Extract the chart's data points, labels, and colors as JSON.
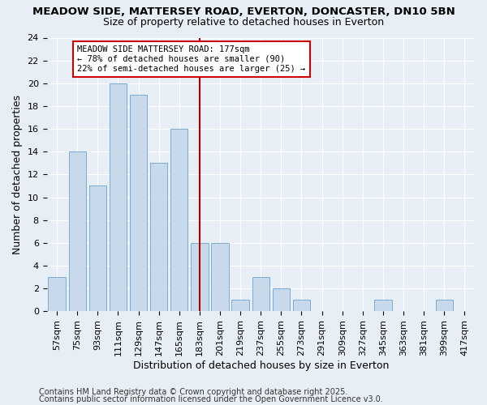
{
  "title1": "MEADOW SIDE, MATTERSEY ROAD, EVERTON, DONCASTER, DN10 5BN",
  "title2": "Size of property relative to detached houses in Everton",
  "xlabel": "Distribution of detached houses by size in Everton",
  "ylabel": "Number of detached properties",
  "categories": [
    "57sqm",
    "75sqm",
    "93sqm",
    "111sqm",
    "129sqm",
    "147sqm",
    "165sqm",
    "183sqm",
    "201sqm",
    "219sqm",
    "237sqm",
    "255sqm",
    "273sqm",
    "291sqm",
    "309sqm",
    "327sqm",
    "345sqm",
    "363sqm",
    "381sqm",
    "399sqm",
    "417sqm"
  ],
  "values": [
    3,
    14,
    11,
    20,
    19,
    13,
    16,
    6,
    6,
    1,
    3,
    2,
    1,
    0,
    0,
    0,
    1,
    0,
    0,
    1,
    0
  ],
  "bar_color": "#c9d9ec",
  "bar_edge_color": "#7aadcf",
  "vline_x": 7.0,
  "vline_color": "#aa0000",
  "annotation_text": "MEADOW SIDE MATTERSEY ROAD: 177sqm\n← 78% of detached houses are smaller (90)\n22% of semi-detached houses are larger (25) →",
  "annotation_box_color": "#ffffff",
  "annotation_box_edge": "#cc0000",
  "ylim": [
    0,
    24
  ],
  "yticks": [
    0,
    2,
    4,
    6,
    8,
    10,
    12,
    14,
    16,
    18,
    20,
    22,
    24
  ],
  "footer1": "Contains HM Land Registry data © Crown copyright and database right 2025.",
  "footer2": "Contains public sector information licensed under the Open Government Licence v3.0.",
  "background_color": "#e8eef5",
  "plot_background": "#e8eef5",
  "grid_color": "#ffffff",
  "title_fontsize": 9.5,
  "subtitle_fontsize": 9,
  "axis_label_fontsize": 9,
  "tick_fontsize": 8,
  "annotation_fontsize": 7.5,
  "footer_fontsize": 7
}
